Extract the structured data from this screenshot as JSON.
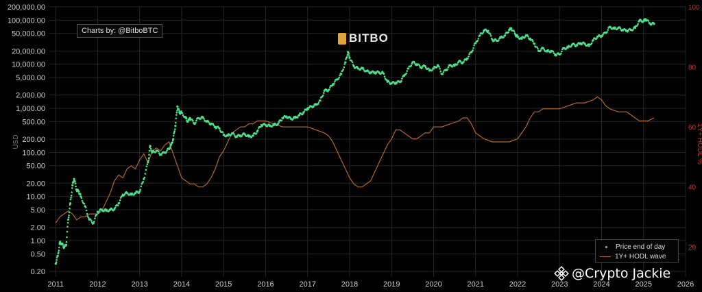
{
  "credit_text": "Charts by: @BitboBTC",
  "brand_name": "BITBO",
  "watermark_text": "@Crypto Jackie",
  "colors": {
    "price": "#4ee08a",
    "hodl": "#b06a2c",
    "grid": "#262626",
    "right_axis": "#c0392b"
  },
  "chart_data": {
    "type": "line",
    "xlabel": "",
    "ylabel": "USD",
    "y2label": "1Y+ HODL %",
    "y_scale": "log",
    "ylim": [
      0.15,
      200000
    ],
    "y2lim": [
      10,
      100
    ],
    "xlim": [
      2010.85,
      2026.0
    ],
    "x_ticks": [
      "2011",
      "2012",
      "2013",
      "2014",
      "2015",
      "2016",
      "2017",
      "2018",
      "2019",
      "2020",
      "2021",
      "2022",
      "2023",
      "2024",
      "2025",
      "2026"
    ],
    "y_ticks": [
      {
        "v": 0.2,
        "label": "0.20"
      },
      {
        "v": 0.5,
        "label": "0.50"
      },
      {
        "v": 1,
        "label": "1.00"
      },
      {
        "v": 2,
        "label": "2.00"
      },
      {
        "v": 5,
        "label": "5.00"
      },
      {
        "v": 10,
        "label": "10.00"
      },
      {
        "v": 20,
        "label": "20.00"
      },
      {
        "v": 50,
        "label": "50.00"
      },
      {
        "v": 100,
        "label": "100.00"
      },
      {
        "v": 200,
        "label": "200.00"
      },
      {
        "v": 500,
        "label": "500.00"
      },
      {
        "v": 1000,
        "label": "1,000.00"
      },
      {
        "v": 2000,
        "label": "2,000.00"
      },
      {
        "v": 5000,
        "label": "5,000.00"
      },
      {
        "v": 10000,
        "label": "10,000.00"
      },
      {
        "v": 20000,
        "label": "20,000.00"
      },
      {
        "v": 50000,
        "label": "50,000.00"
      },
      {
        "v": 100000,
        "label": "100,000.00"
      },
      {
        "v": 200000,
        "label": "200,000.00"
      }
    ],
    "y2_ticks": [
      20,
      40,
      60,
      80,
      100
    ],
    "legend": [
      "Price end of day",
      "1Y+ HODL wave"
    ],
    "legend_position": "bottom-right",
    "grid": true,
    "series": [
      {
        "name": "Price end of day",
        "style": "dots",
        "points": [
          [
            2011.0,
            0.3
          ],
          [
            2011.05,
            0.45
          ],
          [
            2011.1,
            0.9
          ],
          [
            2011.15,
            0.85
          ],
          [
            2011.2,
            0.7
          ],
          [
            2011.25,
            0.8
          ],
          [
            2011.3,
            3
          ],
          [
            2011.35,
            7
          ],
          [
            2011.4,
            18
          ],
          [
            2011.44,
            25
          ],
          [
            2011.5,
            14
          ],
          [
            2011.55,
            13
          ],
          [
            2011.6,
            10
          ],
          [
            2011.7,
            6
          ],
          [
            2011.8,
            3
          ],
          [
            2011.9,
            2.5
          ],
          [
            2012.0,
            4.5
          ],
          [
            2012.1,
            5
          ],
          [
            2012.2,
            4.8
          ],
          [
            2012.3,
            5
          ],
          [
            2012.4,
            5.2
          ],
          [
            2012.5,
            7
          ],
          [
            2012.6,
            11
          ],
          [
            2012.7,
            12
          ],
          [
            2012.8,
            11
          ],
          [
            2012.9,
            12
          ],
          [
            2013.0,
            13
          ],
          [
            2013.1,
            25
          ],
          [
            2013.2,
            60
          ],
          [
            2013.25,
            140
          ],
          [
            2013.3,
            100
          ],
          [
            2013.4,
            110
          ],
          [
            2013.5,
            90
          ],
          [
            2013.6,
            100
          ],
          [
            2013.7,
            120
          ],
          [
            2013.75,
            150
          ],
          [
            2013.8,
            200
          ],
          [
            2013.85,
            400
          ],
          [
            2013.9,
            1100
          ],
          [
            2013.95,
            800
          ],
          [
            2014.0,
            800
          ],
          [
            2014.1,
            600
          ],
          [
            2014.15,
            500
          ],
          [
            2014.2,
            600
          ],
          [
            2014.3,
            450
          ],
          [
            2014.4,
            600
          ],
          [
            2014.5,
            620
          ],
          [
            2014.6,
            500
          ],
          [
            2014.7,
            450
          ],
          [
            2014.8,
            380
          ],
          [
            2014.9,
            350
          ],
          [
            2015.0,
            250
          ],
          [
            2015.1,
            240
          ],
          [
            2015.2,
            270
          ],
          [
            2015.3,
            230
          ],
          [
            2015.4,
            240
          ],
          [
            2015.5,
            260
          ],
          [
            2015.6,
            230
          ],
          [
            2015.7,
            240
          ],
          [
            2015.8,
            300
          ],
          [
            2015.9,
            420
          ],
          [
            2016.0,
            420
          ],
          [
            2016.1,
            400
          ],
          [
            2016.2,
            420
          ],
          [
            2016.3,
            450
          ],
          [
            2016.4,
            600
          ],
          [
            2016.5,
            650
          ],
          [
            2016.6,
            580
          ],
          [
            2016.7,
            610
          ],
          [
            2016.8,
            700
          ],
          [
            2016.9,
            800
          ],
          [
            2017.0,
            1000
          ],
          [
            2017.1,
            1100
          ],
          [
            2017.2,
            1200
          ],
          [
            2017.3,
            1500
          ],
          [
            2017.4,
            2500
          ],
          [
            2017.5,
            2600
          ],
          [
            2017.6,
            3500
          ],
          [
            2017.7,
            4500
          ],
          [
            2017.8,
            6000
          ],
          [
            2017.9,
            11000
          ],
          [
            2017.96,
            19000
          ],
          [
            2018.0,
            14000
          ],
          [
            2018.1,
            9000
          ],
          [
            2018.2,
            8000
          ],
          [
            2018.3,
            8000
          ],
          [
            2018.4,
            7000
          ],
          [
            2018.5,
            6500
          ],
          [
            2018.6,
            6500
          ],
          [
            2018.7,
            6500
          ],
          [
            2018.8,
            6300
          ],
          [
            2018.9,
            4000
          ],
          [
            2019.0,
            3700
          ],
          [
            2019.1,
            3800
          ],
          [
            2019.2,
            4000
          ],
          [
            2019.3,
            5500
          ],
          [
            2019.4,
            8000
          ],
          [
            2019.5,
            11000
          ],
          [
            2019.6,
            10000
          ],
          [
            2019.7,
            8500
          ],
          [
            2019.8,
            9000
          ],
          [
            2019.9,
            7200
          ],
          [
            2020.0,
            8000
          ],
          [
            2020.1,
            9500
          ],
          [
            2020.2,
            6000
          ],
          [
            2020.3,
            7500
          ],
          [
            2020.4,
            9500
          ],
          [
            2020.5,
            9200
          ],
          [
            2020.6,
            11500
          ],
          [
            2020.7,
            11000
          ],
          [
            2020.8,
            13500
          ],
          [
            2020.9,
            19000
          ],
          [
            2021.0,
            30000
          ],
          [
            2021.1,
            45000
          ],
          [
            2021.2,
            58000
          ],
          [
            2021.3,
            57000
          ],
          [
            2021.4,
            36000
          ],
          [
            2021.5,
            34000
          ],
          [
            2021.6,
            40000
          ],
          [
            2021.7,
            45000
          ],
          [
            2021.8,
            60000
          ],
          [
            2021.85,
            65000
          ],
          [
            2021.95,
            47000
          ],
          [
            2022.0,
            42000
          ],
          [
            2022.1,
            38000
          ],
          [
            2022.2,
            45000
          ],
          [
            2022.3,
            38000
          ],
          [
            2022.4,
            29000
          ],
          [
            2022.5,
            20000
          ],
          [
            2022.6,
            23000
          ],
          [
            2022.7,
            19500
          ],
          [
            2022.8,
            20000
          ],
          [
            2022.9,
            16500
          ],
          [
            2023.0,
            16800
          ],
          [
            2023.1,
            23000
          ],
          [
            2023.2,
            24000
          ],
          [
            2023.3,
            28000
          ],
          [
            2023.4,
            27000
          ],
          [
            2023.5,
            30000
          ],
          [
            2023.6,
            29000
          ],
          [
            2023.7,
            26000
          ],
          [
            2023.8,
            35000
          ],
          [
            2023.9,
            42000
          ],
          [
            2024.0,
            44000
          ],
          [
            2024.1,
            52000
          ],
          [
            2024.2,
            70000
          ],
          [
            2024.3,
            64000
          ],
          [
            2024.4,
            67000
          ],
          [
            2024.5,
            60000
          ],
          [
            2024.6,
            58000
          ],
          [
            2024.7,
            60000
          ],
          [
            2024.8,
            67000
          ],
          [
            2024.9,
            97000
          ],
          [
            2025.0,
            95000
          ],
          [
            2025.05,
            105000
          ],
          [
            2025.15,
            84000
          ],
          [
            2025.25,
            82000
          ]
        ]
      },
      {
        "name": "1Y+ HODL wave",
        "style": "line",
        "points": [
          [
            2011.0,
            28
          ],
          [
            2011.1,
            30
          ],
          [
            2011.2,
            31
          ],
          [
            2011.3,
            32
          ],
          [
            2011.4,
            31
          ],
          [
            2011.5,
            29
          ],
          [
            2011.6,
            30
          ],
          [
            2011.7,
            30
          ],
          [
            2011.8,
            31
          ],
          [
            2011.9,
            31
          ],
          [
            2012.0,
            31
          ],
          [
            2012.1,
            32
          ],
          [
            2012.2,
            35
          ],
          [
            2012.3,
            38
          ],
          [
            2012.4,
            42
          ],
          [
            2012.5,
            44
          ],
          [
            2012.6,
            43
          ],
          [
            2012.7,
            46
          ],
          [
            2012.8,
            47
          ],
          [
            2012.9,
            46
          ],
          [
            2013.0,
            49
          ],
          [
            2013.1,
            51
          ],
          [
            2013.2,
            48
          ],
          [
            2013.3,
            52
          ],
          [
            2013.4,
            53
          ],
          [
            2013.5,
            52
          ],
          [
            2013.6,
            54
          ],
          [
            2013.7,
            55
          ],
          [
            2013.8,
            51
          ],
          [
            2013.9,
            47
          ],
          [
            2014.0,
            43
          ],
          [
            2014.1,
            42
          ],
          [
            2014.2,
            41
          ],
          [
            2014.3,
            41
          ],
          [
            2014.4,
            40
          ],
          [
            2014.5,
            40
          ],
          [
            2014.6,
            41
          ],
          [
            2014.7,
            43
          ],
          [
            2014.8,
            46
          ],
          [
            2014.9,
            50
          ],
          [
            2015.0,
            52
          ],
          [
            2015.1,
            55
          ],
          [
            2015.2,
            58
          ],
          [
            2015.3,
            59
          ],
          [
            2015.4,
            60
          ],
          [
            2015.5,
            60
          ],
          [
            2015.6,
            61
          ],
          [
            2015.7,
            61
          ],
          [
            2015.8,
            62
          ],
          [
            2015.9,
            62
          ],
          [
            2016.0,
            62
          ],
          [
            2016.2,
            61
          ],
          [
            2016.4,
            60
          ],
          [
            2016.6,
            60
          ],
          [
            2016.8,
            60
          ],
          [
            2017.0,
            60
          ],
          [
            2017.2,
            59
          ],
          [
            2017.4,
            58
          ],
          [
            2017.5,
            57
          ],
          [
            2017.6,
            55
          ],
          [
            2017.7,
            52
          ],
          [
            2017.8,
            49
          ],
          [
            2017.9,
            46
          ],
          [
            2018.0,
            43
          ],
          [
            2018.1,
            41
          ],
          [
            2018.2,
            40
          ],
          [
            2018.3,
            40
          ],
          [
            2018.4,
            41
          ],
          [
            2018.5,
            42
          ],
          [
            2018.6,
            45
          ],
          [
            2018.7,
            48
          ],
          [
            2018.8,
            51
          ],
          [
            2018.9,
            54
          ],
          [
            2019.0,
            56
          ],
          [
            2019.1,
            59
          ],
          [
            2019.2,
            59
          ],
          [
            2019.3,
            58
          ],
          [
            2019.4,
            57
          ],
          [
            2019.5,
            56
          ],
          [
            2019.6,
            56
          ],
          [
            2019.7,
            57
          ],
          [
            2019.8,
            58
          ],
          [
            2019.9,
            58
          ],
          [
            2020.0,
            60
          ],
          [
            2020.2,
            60
          ],
          [
            2020.4,
            61
          ],
          [
            2020.6,
            62
          ],
          [
            2020.7,
            63
          ],
          [
            2020.8,
            63
          ],
          [
            2020.9,
            61
          ],
          [
            2021.0,
            58
          ],
          [
            2021.1,
            57
          ],
          [
            2021.2,
            56
          ],
          [
            2021.4,
            55
          ],
          [
            2021.6,
            55
          ],
          [
            2021.8,
            55
          ],
          [
            2022.0,
            56
          ],
          [
            2022.1,
            58
          ],
          [
            2022.2,
            60
          ],
          [
            2022.3,
            63
          ],
          [
            2022.4,
            65
          ],
          [
            2022.5,
            65
          ],
          [
            2022.6,
            66
          ],
          [
            2022.8,
            66
          ],
          [
            2023.0,
            66
          ],
          [
            2023.2,
            67
          ],
          [
            2023.4,
            68
          ],
          [
            2023.6,
            68
          ],
          [
            2023.8,
            69
          ],
          [
            2023.9,
            70
          ],
          [
            2024.0,
            69
          ],
          [
            2024.1,
            67
          ],
          [
            2024.2,
            66
          ],
          [
            2024.4,
            65
          ],
          [
            2024.6,
            65
          ],
          [
            2024.8,
            63
          ],
          [
            2024.9,
            62
          ],
          [
            2025.0,
            62
          ],
          [
            2025.1,
            62
          ],
          [
            2025.25,
            63
          ]
        ]
      }
    ]
  }
}
